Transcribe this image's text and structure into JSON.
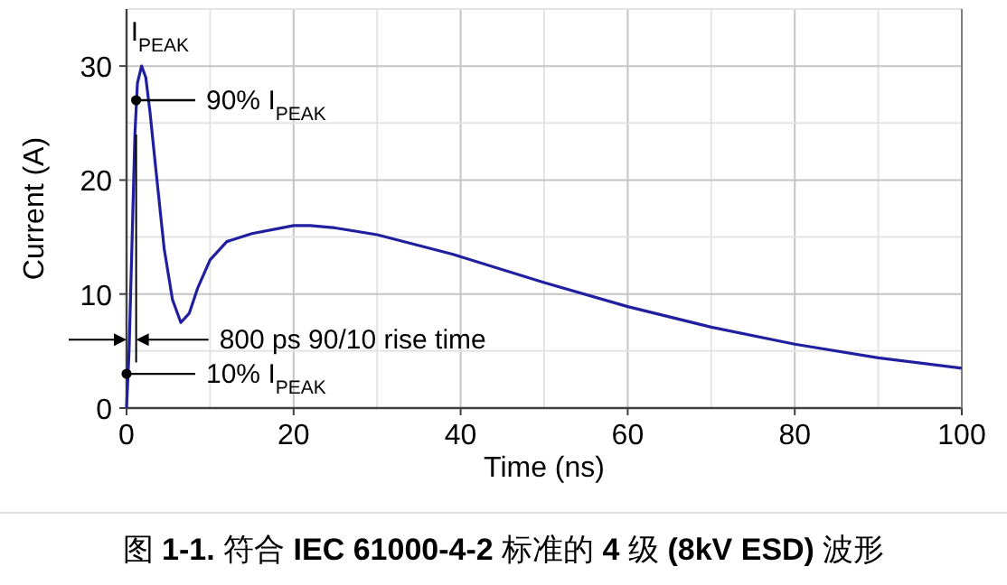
{
  "chart_data": {
    "type": "line",
    "title": "图 **1-1.** 符合 **IEC 61000-4-2** 标准的 **4** 级 **(8kV ESD)** 波形",
    "xlabel": "Time (ns)",
    "ylabel": "Current (A)",
    "x": [
      0,
      0.3,
      0.6,
      1,
      1.3,
      1.8,
      2.3,
      2.8,
      3.5,
      4.5,
      5.5,
      6.5,
      7.5,
      8.5,
      10,
      12,
      15,
      20,
      22,
      25,
      30,
      39,
      50,
      60,
      70,
      80,
      90,
      100
    ],
    "series": [
      {
        "color": "#1f1fa0",
        "values": [
          0,
          5,
          13,
          24,
          28.5,
          30,
          29,
          26,
          21,
          14,
          9.5,
          7.5,
          8.3,
          10.5,
          13,
          14.6,
          15.3,
          16,
          16,
          15.8,
          15.2,
          13.5,
          11,
          8.9,
          7.1,
          5.6,
          4.4,
          3.5
        ]
      }
    ],
    "xlim": [
      0,
      100
    ],
    "ylim": [
      0,
      35
    ],
    "xticks": [
      0,
      20,
      40,
      60,
      80,
      100
    ],
    "yticks": [
      0,
      10,
      20,
      30
    ],
    "grid": true,
    "marker": "none",
    "line_style": "solid",
    "annotations": [
      {
        "text": "I$_{PEAK}$",
        "x": 1.8,
        "y": 30
      },
      {
        "text": "90% I$_{PEAK}$",
        "x": 1.15,
        "y": 27
      },
      {
        "text": "800 ps 90/10 rise time",
        "x": 1.15,
        "y": 6
      },
      {
        "text": "10% I$_{PEAK}$",
        "x": 0,
        "y": 3
      }
    ]
  }
}
